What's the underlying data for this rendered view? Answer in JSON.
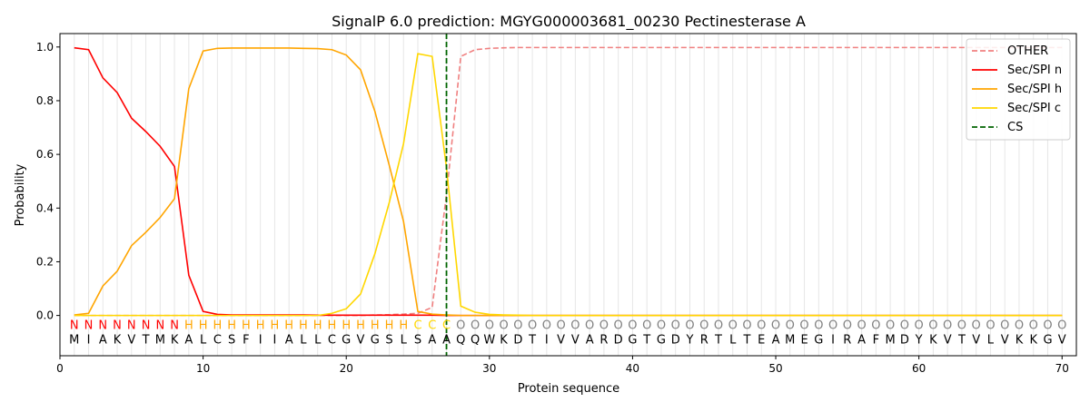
{
  "chart_data": {
    "type": "line",
    "title": "SignalP 6.0 prediction: MGYG000003681_00230 Pectinesterase A",
    "xlabel": "Protein sequence",
    "ylabel": "Probability",
    "xlim": [
      0,
      71
    ],
    "ylim": [
      -0.15,
      1.05
    ],
    "x_ticks": [
      0,
      10,
      20,
      30,
      40,
      50,
      60,
      70
    ],
    "y_ticks": [
      0.0,
      0.2,
      0.4,
      0.6,
      0.8,
      1.0
    ],
    "grid": "vertical lines at each residue",
    "legend_position": "top-right",
    "sequence": [
      "M",
      "I",
      "A",
      "K",
      "V",
      "T",
      "M",
      "K",
      "A",
      "L",
      "C",
      "S",
      "F",
      "I",
      "I",
      "A",
      "L",
      "L",
      "C",
      "G",
      "V",
      "G",
      "S",
      "L",
      "S",
      "A",
      "A",
      "Q",
      "Q",
      "W",
      "K",
      "D",
      "T",
      "I",
      "V",
      "V",
      "A",
      "R",
      "D",
      "G",
      "T",
      "G",
      "D",
      "Y",
      "R",
      "T",
      "L",
      "T",
      "E",
      "A",
      "M",
      "E",
      "G",
      "I",
      "R",
      "A",
      "F",
      "M",
      "D",
      "Y",
      "K",
      "V",
      "T",
      "V",
      "L",
      "V",
      "K",
      "K",
      "G",
      "V"
    ],
    "labels": [
      "N",
      "N",
      "N",
      "N",
      "N",
      "N",
      "N",
      "N",
      "H",
      "H",
      "H",
      "H",
      "H",
      "H",
      "H",
      "H",
      "H",
      "H",
      "H",
      "H",
      "H",
      "H",
      "H",
      "H",
      "C",
      "C",
      "C",
      "O",
      "O",
      "O",
      "O",
      "O",
      "O",
      "O",
      "O",
      "O",
      "O",
      "O",
      "O",
      "O",
      "O",
      "O",
      "O",
      "O",
      "O",
      "O",
      "O",
      "O",
      "O",
      "O",
      "O",
      "O",
      "O",
      "O",
      "O",
      "O",
      "O",
      "O",
      "O",
      "O",
      "O",
      "O",
      "O",
      "O",
      "O",
      "O",
      "O",
      "O",
      "O",
      "O"
    ],
    "label_colors": {
      "N": "#ff0000",
      "H": "#ffa500",
      "C": "#ffd700",
      "O": "#808080"
    },
    "series": [
      {
        "name": "OTHER",
        "color": "#f08080",
        "dash": "dashed",
        "values": [
          0.0,
          0.0,
          0.0,
          0.0,
          0.0,
          0.0,
          0.0,
          0.0,
          0.0,
          0.0,
          0.0,
          0.0,
          0.0,
          0.0,
          0.0,
          0.0,
          0.0,
          0.0,
          0.0,
          0.0,
          0.0,
          0.002,
          0.003,
          0.005,
          0.008,
          0.03,
          0.45,
          0.965,
          0.99,
          0.995,
          0.997,
          0.998,
          0.998,
          0.998,
          0.998,
          0.998,
          0.998,
          0.998,
          0.998,
          0.998,
          0.998,
          0.998,
          0.998,
          0.998,
          0.998,
          0.998,
          0.998,
          0.998,
          0.998,
          0.998,
          0.998,
          0.998,
          0.998,
          0.998,
          0.998,
          0.998,
          0.998,
          0.998,
          0.998,
          0.998,
          0.998,
          0.998,
          0.998,
          0.998,
          0.998,
          0.998,
          0.998,
          0.998,
          0.998,
          0.998
        ]
      },
      {
        "name": "Sec/SPI n",
        "color": "#ff0000",
        "dash": "solid",
        "values": [
          0.997,
          0.99,
          0.885,
          0.83,
          0.735,
          0.685,
          0.63,
          0.555,
          0.15,
          0.015,
          0.004,
          0.002,
          0.002,
          0.002,
          0.002,
          0.002,
          0.002,
          0.001,
          0.001,
          0.001,
          0.001,
          0.001,
          0.001,
          0.001,
          0.001,
          0.001,
          0.0,
          0.0,
          0.0,
          0.0,
          0.0,
          0.0,
          0.0,
          0.0,
          0.0,
          0.0,
          0.0,
          0.0,
          0.0,
          0.0,
          0.0,
          0.0,
          0.0,
          0.0,
          0.0,
          0.0,
          0.0,
          0.0,
          0.0,
          0.0,
          0.0,
          0.0,
          0.0,
          0.0,
          0.0,
          0.0,
          0.0,
          0.0,
          0.0,
          0.0,
          0.0,
          0.0,
          0.0,
          0.0,
          0.0,
          0.0,
          0.0,
          0.0,
          0.0,
          0.0
        ]
      },
      {
        "name": "Sec/SPI h",
        "color": "#ffa500",
        "dash": "solid",
        "values": [
          0.002,
          0.008,
          0.11,
          0.165,
          0.26,
          0.31,
          0.365,
          0.435,
          0.845,
          0.985,
          0.995,
          0.996,
          0.996,
          0.996,
          0.996,
          0.996,
          0.995,
          0.994,
          0.99,
          0.97,
          0.915,
          0.76,
          0.56,
          0.35,
          0.015,
          0.005,
          0.002,
          0.0,
          0.0,
          0.0,
          0.0,
          0.0,
          0.0,
          0.0,
          0.0,
          0.0,
          0.0,
          0.0,
          0.0,
          0.0,
          0.0,
          0.0,
          0.0,
          0.0,
          0.0,
          0.0,
          0.0,
          0.0,
          0.0,
          0.0,
          0.0,
          0.0,
          0.0,
          0.0,
          0.0,
          0.0,
          0.0,
          0.0,
          0.0,
          0.0,
          0.0,
          0.0,
          0.0,
          0.0,
          0.0,
          0.0,
          0.0,
          0.0,
          0.0,
          0.0
        ]
      },
      {
        "name": "Sec/SPI c",
        "color": "#ffd700",
        "dash": "solid",
        "values": [
          0.0,
          0.0,
          0.0,
          0.0,
          0.0,
          0.0,
          0.0,
          0.0,
          0.0,
          0.0,
          0.0,
          0.0,
          0.0,
          0.0,
          0.0,
          0.0,
          0.0,
          0.0,
          0.008,
          0.025,
          0.08,
          0.23,
          0.42,
          0.64,
          0.975,
          0.965,
          0.55,
          0.035,
          0.012,
          0.004,
          0.002,
          0.001,
          0.0,
          0.0,
          0.0,
          0.0,
          0.0,
          0.0,
          0.0,
          0.0,
          0.0,
          0.0,
          0.0,
          0.0,
          0.0,
          0.0,
          0.0,
          0.0,
          0.0,
          0.0,
          0.0,
          0.0,
          0.0,
          0.0,
          0.0,
          0.0,
          0.0,
          0.0,
          0.0,
          0.0,
          0.0,
          0.0,
          0.0,
          0.0,
          0.0,
          0.0,
          0.0,
          0.0,
          0.0,
          0.0
        ]
      }
    ],
    "cs": {
      "name": "CS",
      "x": 27,
      "color": "#006400",
      "dash": "dashed"
    }
  }
}
